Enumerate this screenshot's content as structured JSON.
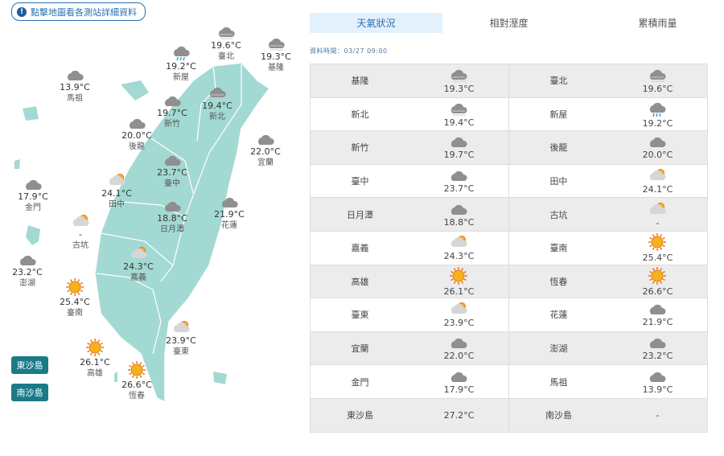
{
  "hint": {
    "label": "點擊地圖看各測站詳細資料",
    "icon": "info-icon"
  },
  "tabs": [
    {
      "label": "天氣狀況",
      "active": true
    },
    {
      "label": "相對溼度",
      "active": false
    },
    {
      "label": "累積雨量",
      "active": false
    }
  ],
  "data_time": "資料時間：03/27 09:00",
  "island_buttons": [
    "東沙島",
    "南沙島"
  ],
  "colors": {
    "map_land": "#a3d9d3",
    "accent": "#2a6fb0",
    "island_button": "#1a7b87",
    "sun": "#f5b21c",
    "cloud": "#8f8f8f"
  },
  "stations": [
    {
      "name": "基隆",
      "temp": "19.3°C",
      "icon": "fog-cloud"
    },
    {
      "name": "臺北",
      "temp": "19.6°C",
      "icon": "fog-cloud"
    },
    {
      "name": "新北",
      "temp": "19.4°C",
      "icon": "fog-cloud"
    },
    {
      "name": "新屋",
      "temp": "19.2°C",
      "icon": "rain-cloud"
    },
    {
      "name": "新竹",
      "temp": "19.7°C",
      "icon": "cloud"
    },
    {
      "name": "後龍",
      "temp": "20.0°C",
      "icon": "cloud"
    },
    {
      "name": "臺中",
      "temp": "23.7°C",
      "icon": "cloud"
    },
    {
      "name": "田中",
      "temp": "24.1°C",
      "icon": "partly-cloudy"
    },
    {
      "name": "日月潭",
      "temp": "18.8°C",
      "icon": "cloud"
    },
    {
      "name": "古坑",
      "temp": "-",
      "icon": "partly-cloudy"
    },
    {
      "name": "嘉義",
      "temp": "24.3°C",
      "icon": "partly-cloudy"
    },
    {
      "name": "臺南",
      "temp": "25.4°C",
      "icon": "sun"
    },
    {
      "name": "高雄",
      "temp": "26.1°C",
      "icon": "sun"
    },
    {
      "name": "恆春",
      "temp": "26.6°C",
      "icon": "sun"
    },
    {
      "name": "臺東",
      "temp": "23.9°C",
      "icon": "partly-cloudy"
    },
    {
      "name": "花蓮",
      "temp": "21.9°C",
      "icon": "cloud"
    },
    {
      "name": "宜蘭",
      "temp": "22.0°C",
      "icon": "cloud"
    },
    {
      "name": "澎湖",
      "temp": "23.2°C",
      "icon": "cloud"
    },
    {
      "name": "金門",
      "temp": "17.9°C",
      "icon": "cloud"
    },
    {
      "name": "馬祖",
      "temp": "13.9°C",
      "icon": "cloud"
    },
    {
      "name": "東沙島",
      "temp": "27.2°C",
      "icon": ""
    },
    {
      "name": "南沙島",
      "temp": "-",
      "icon": ""
    }
  ]
}
